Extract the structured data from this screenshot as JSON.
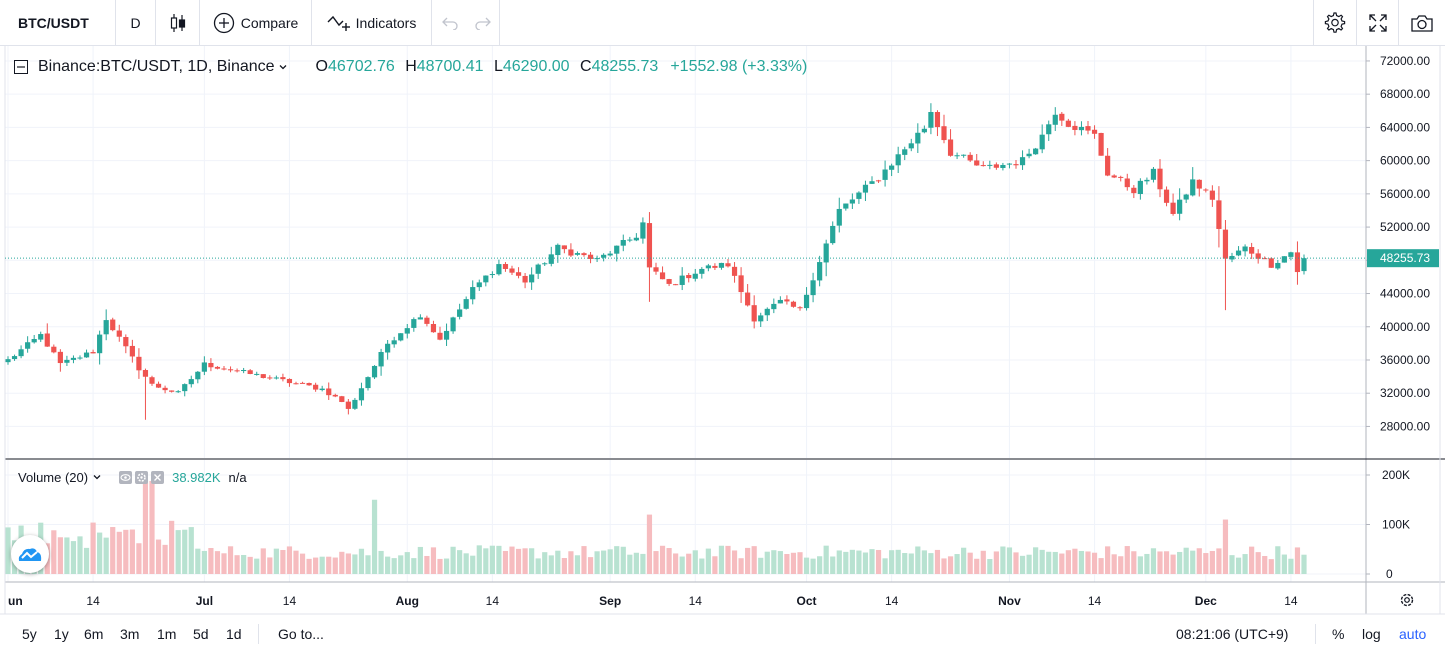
{
  "toolbar": {
    "symbol": "BTC/USDT",
    "interval": "D",
    "compare_label": "Compare",
    "indicators_label": "Indicators"
  },
  "legend": {
    "symbol_full": "Binance:BTC/USDT, 1D, Binance",
    "open_label": "O",
    "open": "46702.76",
    "high_label": "H",
    "high": "48700.41",
    "low_label": "L",
    "low": "46290.00",
    "close_label": "C",
    "close": "48255.73",
    "change": "+1552.98 (+3.33%)"
  },
  "volume_legend": {
    "label": "Volume (20)",
    "value": "38.982K",
    "na": "n/a"
  },
  "bottom": {
    "ranges": [
      "5y",
      "1y",
      "6m",
      "3m",
      "1m",
      "5d",
      "1d"
    ],
    "goto": "Go to...",
    "time": "08:21:06 (UTC+9)",
    "percent": "%",
    "log": "log",
    "auto": "auto"
  },
  "colors": {
    "up": "#26a69a",
    "down": "#ef5350",
    "up_vol": "#b8e2d1",
    "down_vol": "#f6bcbf",
    "auto": "#2962ff"
  },
  "chart_data": {
    "type": "candlestick",
    "title": "Binance:BTC/USDT, 1D",
    "price_axis_ticks": [
      "72000.00",
      "68000.00",
      "64000.00",
      "60000.00",
      "56000.00",
      "52000.00",
      "48000.00",
      "44000.00",
      "40000.00",
      "36000.00",
      "32000.00",
      "28000.00"
    ],
    "price_ticks_values": [
      72000,
      68000,
      64000,
      60000,
      56000,
      52000,
      48000,
      44000,
      40000,
      36000,
      32000,
      28000
    ],
    "ylim": [
      24200,
      73800
    ],
    "last_price_label": "48255.73",
    "last_price": 48255.73,
    "volume_axis_ticks": [
      "200K",
      "100K",
      "0"
    ],
    "volume_ticks_values": [
      200000,
      100000,
      0
    ],
    "x_ticks": [
      {
        "i": 0,
        "label": "Jun"
      },
      {
        "i": 13,
        "label": "14"
      },
      {
        "i": 30,
        "label": "Jul"
      },
      {
        "i": 43,
        "label": "14"
      },
      {
        "i": 61,
        "label": "Aug"
      },
      {
        "i": 74,
        "label": "14"
      },
      {
        "i": 92,
        "label": "Sep"
      },
      {
        "i": 105,
        "label": "14"
      },
      {
        "i": 122,
        "label": "Oct"
      },
      {
        "i": 135,
        "label": "14"
      },
      {
        "i": 153,
        "label": "Nov"
      },
      {
        "i": 166,
        "label": "14"
      },
      {
        "i": 183,
        "label": "Dec"
      },
      {
        "i": 196,
        "label": "14"
      }
    ],
    "anchors": [
      [
        0,
        36000
      ],
      [
        5,
        39000
      ],
      [
        8,
        35500
      ],
      [
        13,
        37000
      ],
      [
        15,
        41000
      ],
      [
        20,
        35000
      ],
      [
        22,
        33000
      ],
      [
        26,
        32000
      ],
      [
        30,
        35500
      ],
      [
        36,
        34500
      ],
      [
        42,
        33500
      ],
      [
        48,
        32500
      ],
      [
        51,
        31000
      ],
      [
        52,
        30000
      ],
      [
        55,
        34000
      ],
      [
        58,
        38000
      ],
      [
        63,
        41500
      ],
      [
        66,
        38500
      ],
      [
        71,
        44500
      ],
      [
        75,
        47500
      ],
      [
        79,
        45500
      ],
      [
        84,
        49500
      ],
      [
        90,
        48000
      ],
      [
        96,
        51000
      ],
      [
        97,
        52500
      ],
      [
        98,
        47000
      ],
      [
        101,
        45000
      ],
      [
        106,
        47000
      ],
      [
        110,
        47500
      ],
      [
        114,
        41000
      ],
      [
        118,
        43000
      ],
      [
        121,
        42000
      ],
      [
        124,
        48000
      ],
      [
        127,
        54000
      ],
      [
        133,
        58000
      ],
      [
        140,
        64000
      ],
      [
        141,
        66000
      ],
      [
        144,
        61000
      ],
      [
        149,
        59000
      ],
      [
        155,
        60000
      ],
      [
        158,
        63000
      ],
      [
        160,
        66000
      ],
      [
        162,
        64500
      ],
      [
        166,
        63000
      ],
      [
        168,
        58500
      ],
      [
        172,
        56500
      ],
      [
        175,
        58500
      ],
      [
        178,
        53500
      ],
      [
        181,
        57500
      ],
      [
        184,
        55500
      ],
      [
        186,
        48000
      ],
      [
        189,
        49500
      ],
      [
        193,
        47500
      ],
      [
        196,
        49000
      ],
      [
        197,
        46700
      ],
      [
        198,
        48255
      ]
    ],
    "last_candle": {
      "open": 46702.76,
      "high": 48700.41,
      "low": 46290.0,
      "close": 48255.73
    },
    "last_volume": 38982
  }
}
